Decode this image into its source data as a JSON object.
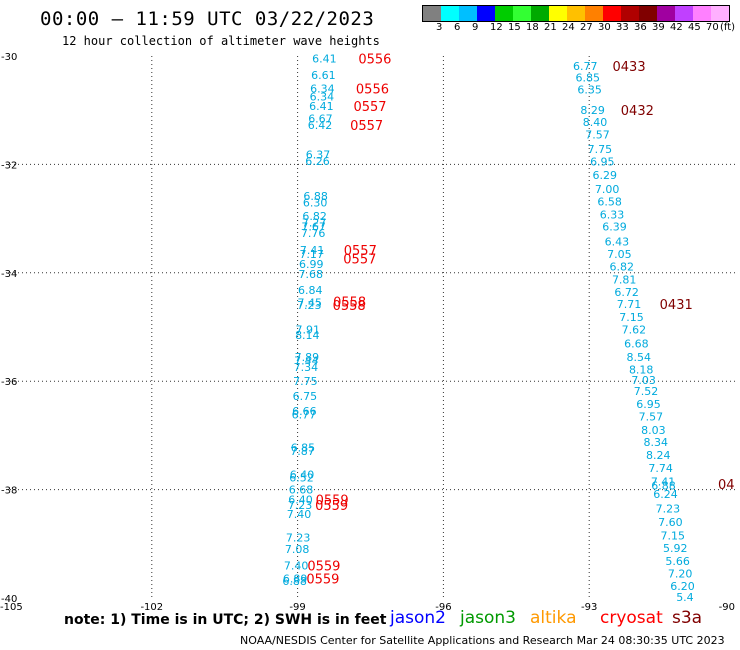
{
  "header": {
    "title": "00:00 – 11:59 UTC 03/22/2023",
    "subtitle": "12 hour collection of altimeter wave heights"
  },
  "colorbar": {
    "colors": [
      "#808080",
      "#00ffff",
      "#00bfff",
      "#0000ff",
      "#00cc00",
      "#33ff33",
      "#00aa00",
      "#ffff00",
      "#ffc000",
      "#ff8000",
      "#ff0000",
      "#b00000",
      "#800000",
      "#a000a0",
      "#c040ff",
      "#ff80ff",
      "#ffb0ff"
    ],
    "labels": [
      "3",
      "6",
      "9",
      "12",
      "15",
      "18",
      "21",
      "24",
      "27",
      "30",
      "33",
      "36",
      "39",
      "42",
      "45",
      "70",
      "(ft)"
    ]
  },
  "footer": {
    "note": "note:  1) Time is in UTC;  2) SWH is in feet",
    "credit": "NOAA/NESDIS Center for Satellite Applications and Research   Mar 24 08:30:35 UTC 2023",
    "satellites": [
      {
        "name": "jason2",
        "color": "#0000ff"
      },
      {
        "name": "jason3",
        "color": "#009900"
      },
      {
        "name": "altika",
        "color": "#ff9900"
      },
      {
        "name": "cryosat",
        "color": "#ff0000"
      },
      {
        "name": "s3a",
        "color": "#800000"
      }
    ]
  },
  "chart_data": {
    "type": "scatter",
    "title": "00:00 – 11:59 UTC 03/22/2023",
    "subtitle": "12 hour collection of altimeter wave heights",
    "xlabel": "",
    "ylabel": "",
    "xlim": [
      -105,
      -90
    ],
    "ylim": [
      -40,
      -30
    ],
    "x_ticks": [
      "-105",
      "-102",
      "-99",
      "-96",
      "-93",
      "-90"
    ],
    "y_ticks": [
      "-30",
      "-32",
      "-34",
      "-36",
      "-38",
      "-40"
    ],
    "grid": true,
    "point_color": "#00aadd",
    "tracks": [
      {
        "name": "track-1",
        "points": [
          {
            "lon": -98.45,
            "lat": -30.05,
            "v": "6.41"
          },
          {
            "lon": -98.47,
            "lat": -30.35,
            "v": "6.61"
          },
          {
            "lon": -98.49,
            "lat": -30.6,
            "v": "6.34"
          },
          {
            "lon": -98.5,
            "lat": -30.75,
            "v": "6.34"
          },
          {
            "lon": -98.51,
            "lat": -30.92,
            "v": "6.41"
          },
          {
            "lon": -98.53,
            "lat": -31.15,
            "v": "6.67"
          },
          {
            "lon": -98.54,
            "lat": -31.27,
            "v": "6.42"
          },
          {
            "lon": -98.58,
            "lat": -31.82,
            "v": "6.37"
          },
          {
            "lon": -98.59,
            "lat": -31.94,
            "v": "6.26"
          },
          {
            "lon": -98.63,
            "lat": -32.58,
            "v": "6.88"
          },
          {
            "lon": -98.64,
            "lat": -32.7,
            "v": "6.30"
          },
          {
            "lon": -98.65,
            "lat": -32.95,
            "v": "6.82"
          },
          {
            "lon": -98.66,
            "lat": -33.07,
            "v": "7.27"
          },
          {
            "lon": -98.67,
            "lat": -33.15,
            "v": "7.67"
          },
          {
            "lon": -98.68,
            "lat": -33.27,
            "v": "7.76"
          },
          {
            "lon": -98.7,
            "lat": -33.58,
            "v": "7.41"
          },
          {
            "lon": -98.71,
            "lat": -33.65,
            "v": "7.17"
          },
          {
            "lon": -98.72,
            "lat": -33.84,
            "v": "6.99"
          },
          {
            "lon": -98.73,
            "lat": -34.02,
            "v": "7.68"
          },
          {
            "lon": -98.74,
            "lat": -34.32,
            "v": "6.84"
          },
          {
            "lon": -98.75,
            "lat": -34.55,
            "v": "7.45"
          },
          {
            "lon": -98.76,
            "lat": -34.59,
            "v": "7.23"
          },
          {
            "lon": -98.79,
            "lat": -35.05,
            "v": "7.91"
          },
          {
            "lon": -98.8,
            "lat": -35.15,
            "v": "8.14"
          },
          {
            "lon": -98.81,
            "lat": -35.55,
            "v": "7.89"
          },
          {
            "lon": -98.82,
            "lat": -35.62,
            "v": "7.44"
          },
          {
            "lon": -98.83,
            "lat": -35.74,
            "v": "7.34"
          },
          {
            "lon": -98.84,
            "lat": -36.0,
            "v": "7.75"
          },
          {
            "lon": -98.85,
            "lat": -36.27,
            "v": "6.75"
          },
          {
            "lon": -98.86,
            "lat": -36.55,
            "v": "6.66"
          },
          {
            "lon": -98.87,
            "lat": -36.61,
            "v": "6.77"
          },
          {
            "lon": -98.89,
            "lat": -37.22,
            "v": "6.85"
          },
          {
            "lon": -98.9,
            "lat": -37.29,
            "v": "7.87"
          },
          {
            "lon": -98.91,
            "lat": -37.72,
            "v": "6.40"
          },
          {
            "lon": -98.92,
            "lat": -37.78,
            "v": "6.52"
          },
          {
            "lon": -98.93,
            "lat": -38.0,
            "v": "6.68"
          },
          {
            "lon": -98.94,
            "lat": -38.18,
            "v": "6.40"
          },
          {
            "lon": -98.95,
            "lat": -38.28,
            "v": "7.23"
          },
          {
            "lon": -98.97,
            "lat": -38.45,
            "v": "7.40"
          },
          {
            "lon": -98.99,
            "lat": -38.88,
            "v": "7.23"
          },
          {
            "lon": -99.01,
            "lat": -39.1,
            "v": "7.08"
          },
          {
            "lon": -99.03,
            "lat": -39.4,
            "v": "7.40"
          },
          {
            "lon": -99.05,
            "lat": -39.64,
            "v": "6.89"
          },
          {
            "lon": -99.06,
            "lat": -39.69,
            "v": "6.88"
          }
        ]
      },
      {
        "name": "track-2",
        "points": [
          {
            "lon": -93.08,
            "lat": -30.18,
            "v": "6.77"
          },
          {
            "lon": -93.03,
            "lat": -30.4,
            "v": "6.85"
          },
          {
            "lon": -92.99,
            "lat": -30.62,
            "v": "6.35"
          },
          {
            "lon": -92.93,
            "lat": -31.0,
            "v": "8.29"
          },
          {
            "lon": -92.88,
            "lat": -31.22,
            "v": "8.40"
          },
          {
            "lon": -92.83,
            "lat": -31.45,
            "v": "7.57"
          },
          {
            "lon": -92.78,
            "lat": -31.72,
            "v": "7.75"
          },
          {
            "lon": -92.73,
            "lat": -31.95,
            "v": "6.95"
          },
          {
            "lon": -92.68,
            "lat": -32.2,
            "v": "6.29"
          },
          {
            "lon": -92.63,
            "lat": -32.45,
            "v": "7.00"
          },
          {
            "lon": -92.58,
            "lat": -32.68,
            "v": "6.58"
          },
          {
            "lon": -92.53,
            "lat": -32.92,
            "v": "6.33"
          },
          {
            "lon": -92.48,
            "lat": -33.15,
            "v": "6.39"
          },
          {
            "lon": -92.43,
            "lat": -33.42,
            "v": "6.43"
          },
          {
            "lon": -92.38,
            "lat": -33.65,
            "v": "7.05"
          },
          {
            "lon": -92.33,
            "lat": -33.88,
            "v": "6.82"
          },
          {
            "lon": -92.28,
            "lat": -34.12,
            "v": "7.81"
          },
          {
            "lon": -92.23,
            "lat": -34.35,
            "v": "6.72"
          },
          {
            "lon": -92.18,
            "lat": -34.58,
            "v": "7.71"
          },
          {
            "lon": -92.13,
            "lat": -34.82,
            "v": "7.15"
          },
          {
            "lon": -92.08,
            "lat": -35.05,
            "v": "7.62"
          },
          {
            "lon": -92.03,
            "lat": -35.3,
            "v": "6.68"
          },
          {
            "lon": -91.98,
            "lat": -35.55,
            "v": "8.54"
          },
          {
            "lon": -91.93,
            "lat": -35.78,
            "v": "8.18"
          },
          {
            "lon": -91.88,
            "lat": -35.98,
            "v": "7.03"
          },
          {
            "lon": -91.83,
            "lat": -36.18,
            "v": "7.52"
          },
          {
            "lon": -91.78,
            "lat": -36.42,
            "v": "6.95"
          },
          {
            "lon": -91.73,
            "lat": -36.65,
            "v": "7.57"
          },
          {
            "lon": -91.68,
            "lat": -36.9,
            "v": "8.03"
          },
          {
            "lon": -91.63,
            "lat": -37.12,
            "v": "8.34"
          },
          {
            "lon": -91.58,
            "lat": -37.36,
            "v": "8.24"
          },
          {
            "lon": -91.53,
            "lat": -37.6,
            "v": "7.74"
          },
          {
            "lon": -91.48,
            "lat": -37.85,
            "v": "7.41"
          },
          {
            "lon": -91.47,
            "lat": -37.92,
            "v": "6.88"
          },
          {
            "lon": -91.43,
            "lat": -38.08,
            "v": "6.24"
          },
          {
            "lon": -91.38,
            "lat": -38.35,
            "v": "7.23"
          },
          {
            "lon": -91.33,
            "lat": -38.6,
            "v": "7.60"
          },
          {
            "lon": -91.28,
            "lat": -38.85,
            "v": "7.15"
          },
          {
            "lon": -91.23,
            "lat": -39.08,
            "v": "5.92"
          },
          {
            "lon": -91.18,
            "lat": -39.32,
            "v": "5.66"
          },
          {
            "lon": -91.13,
            "lat": -39.55,
            "v": "7.20"
          },
          {
            "lon": -91.08,
            "lat": -39.78,
            "v": "6.20"
          },
          {
            "lon": -91.03,
            "lat": -39.98,
            "v": "5.4"
          }
        ]
      }
    ],
    "time_labels": [
      {
        "lon": -97.75,
        "lat": -30.05,
        "t": "0556",
        "color": "#ee0000"
      },
      {
        "lon": -97.8,
        "lat": -30.6,
        "t": "0556",
        "color": "#ee0000"
      },
      {
        "lon": -97.85,
        "lat": -30.92,
        "t": "0557",
        "color": "#ee0000"
      },
      {
        "lon": -97.92,
        "lat": -31.27,
        "t": "0557",
        "color": "#ee0000"
      },
      {
        "lon": -98.05,
        "lat": -33.58,
        "t": "0557",
        "color": "#ee0000"
      },
      {
        "lon": -98.06,
        "lat": -33.74,
        "t": "0557",
        "color": "#ee0000"
      },
      {
        "lon": -98.27,
        "lat": -34.53,
        "t": "0558",
        "color": "#ee0000"
      },
      {
        "lon": -98.28,
        "lat": -34.59,
        "t": "0558",
        "color": "#ee0000"
      },
      {
        "lon": -98.63,
        "lat": -38.18,
        "t": "0559",
        "color": "#ee0000"
      },
      {
        "lon": -98.64,
        "lat": -38.28,
        "t": "0559",
        "color": "#ee0000"
      },
      {
        "lon": -98.8,
        "lat": -39.4,
        "t": "0559",
        "color": "#ee0000"
      },
      {
        "lon": -98.82,
        "lat": -39.64,
        "t": "0559",
        "color": "#ee0000"
      },
      {
        "lon": -92.52,
        "lat": -30.18,
        "t": "0433",
        "color": "#800000"
      },
      {
        "lon": -92.35,
        "lat": -31.0,
        "t": "0432",
        "color": "#800000"
      },
      {
        "lon": -91.55,
        "lat": -34.58,
        "t": "0431",
        "color": "#800000"
      },
      {
        "lon": -90.35,
        "lat": -37.9,
        "t": "04",
        "color": "#800000"
      }
    ]
  }
}
